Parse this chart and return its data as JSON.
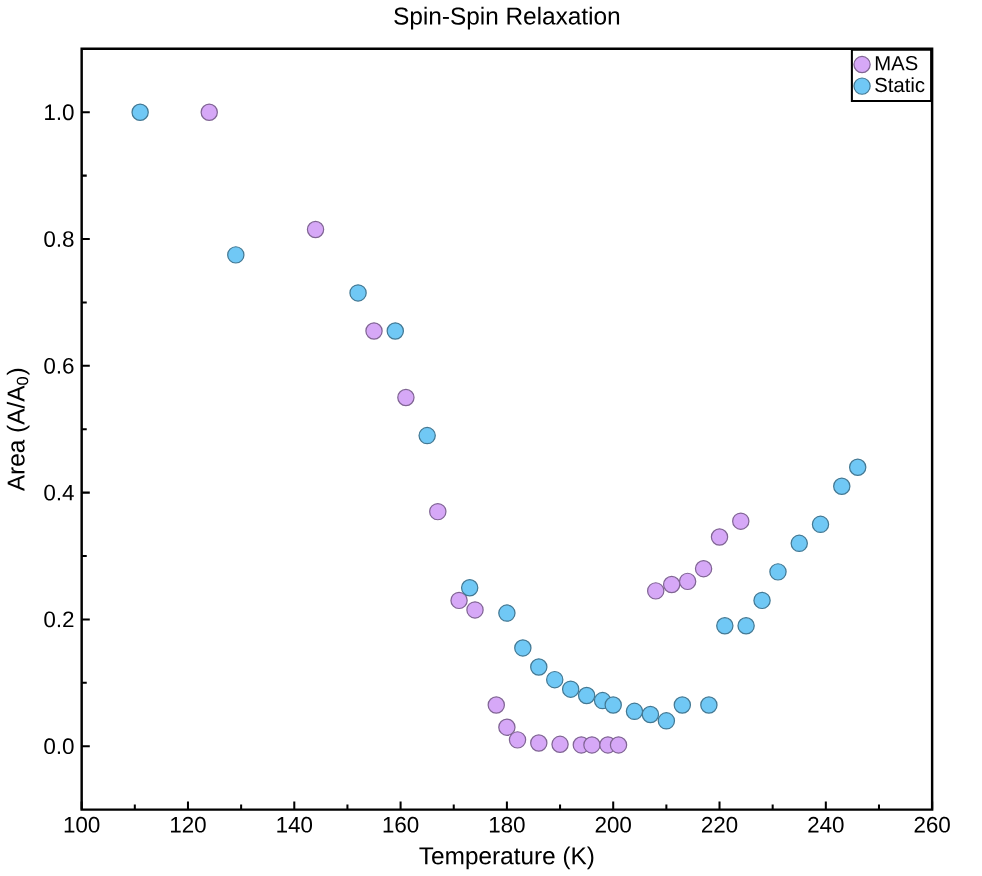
{
  "chart_data": {
    "type": "scatter",
    "title": "Spin-Spin Relaxation",
    "xlabel": "Temperature (K)",
    "ylabel": "Area (A/A$_{0}$)",
    "xlim": [
      100,
      260
    ],
    "xticks": [
      100,
      120,
      140,
      160,
      180,
      200,
      220,
      240,
      260
    ],
    "ylim": [
      -0.1,
      1.1
    ],
    "yticks": [
      {
        "value": 0,
        "label": "0.0"
      },
      {
        "value": 0.2,
        "label": "0.2"
      },
      {
        "value": 0.4,
        "label": "0.4"
      },
      {
        "value": 0.6,
        "label": "0.6"
      },
      {
        "value": 0.8,
        "label": "0.8"
      },
      {
        "value": 1,
        "label": "1.0"
      }
    ],
    "marker": "circle",
    "legend": "top right",
    "grid": false,
    "series": [
      {
        "name": "MAS",
        "color": "#d6a8f7",
        "x": [
          124,
          144,
          155,
          161,
          167,
          171,
          174,
          178,
          180,
          182,
          186,
          190,
          194,
          196,
          199,
          201,
          204,
          208,
          211,
          214,
          217,
          220,
          224
        ],
        "values": [
          1.0,
          0.815,
          0.655,
          0.55,
          0.37,
          0.23,
          0.215,
          0.065,
          0.03,
          0.01,
          0.005,
          0.003,
          0.002,
          0.002,
          0.002,
          0.002,
          null,
          0.245,
          0.255,
          0.26,
          0.28,
          0.33,
          0.355
        ]
      },
      {
        "name": "Static",
        "color": "#70c8f5",
        "x": [
          111,
          129,
          152,
          159,
          165,
          173,
          180,
          183,
          186,
          189,
          192,
          195,
          198,
          200,
          204,
          207,
          210,
          213,
          218,
          221,
          225,
          228,
          231,
          235,
          239,
          243,
          246
        ],
        "values": [
          1.0,
          0.775,
          0.715,
          0.655,
          0.49,
          0.25,
          0.21,
          0.155,
          0.125,
          0.105,
          0.09,
          0.08,
          0.072,
          0.065,
          0.055,
          0.05,
          0.04,
          0.065,
          0.065,
          0.19,
          0.19,
          0.23,
          0.275,
          0.32,
          0.35,
          0.41,
          0.44
        ]
      }
    ]
  }
}
